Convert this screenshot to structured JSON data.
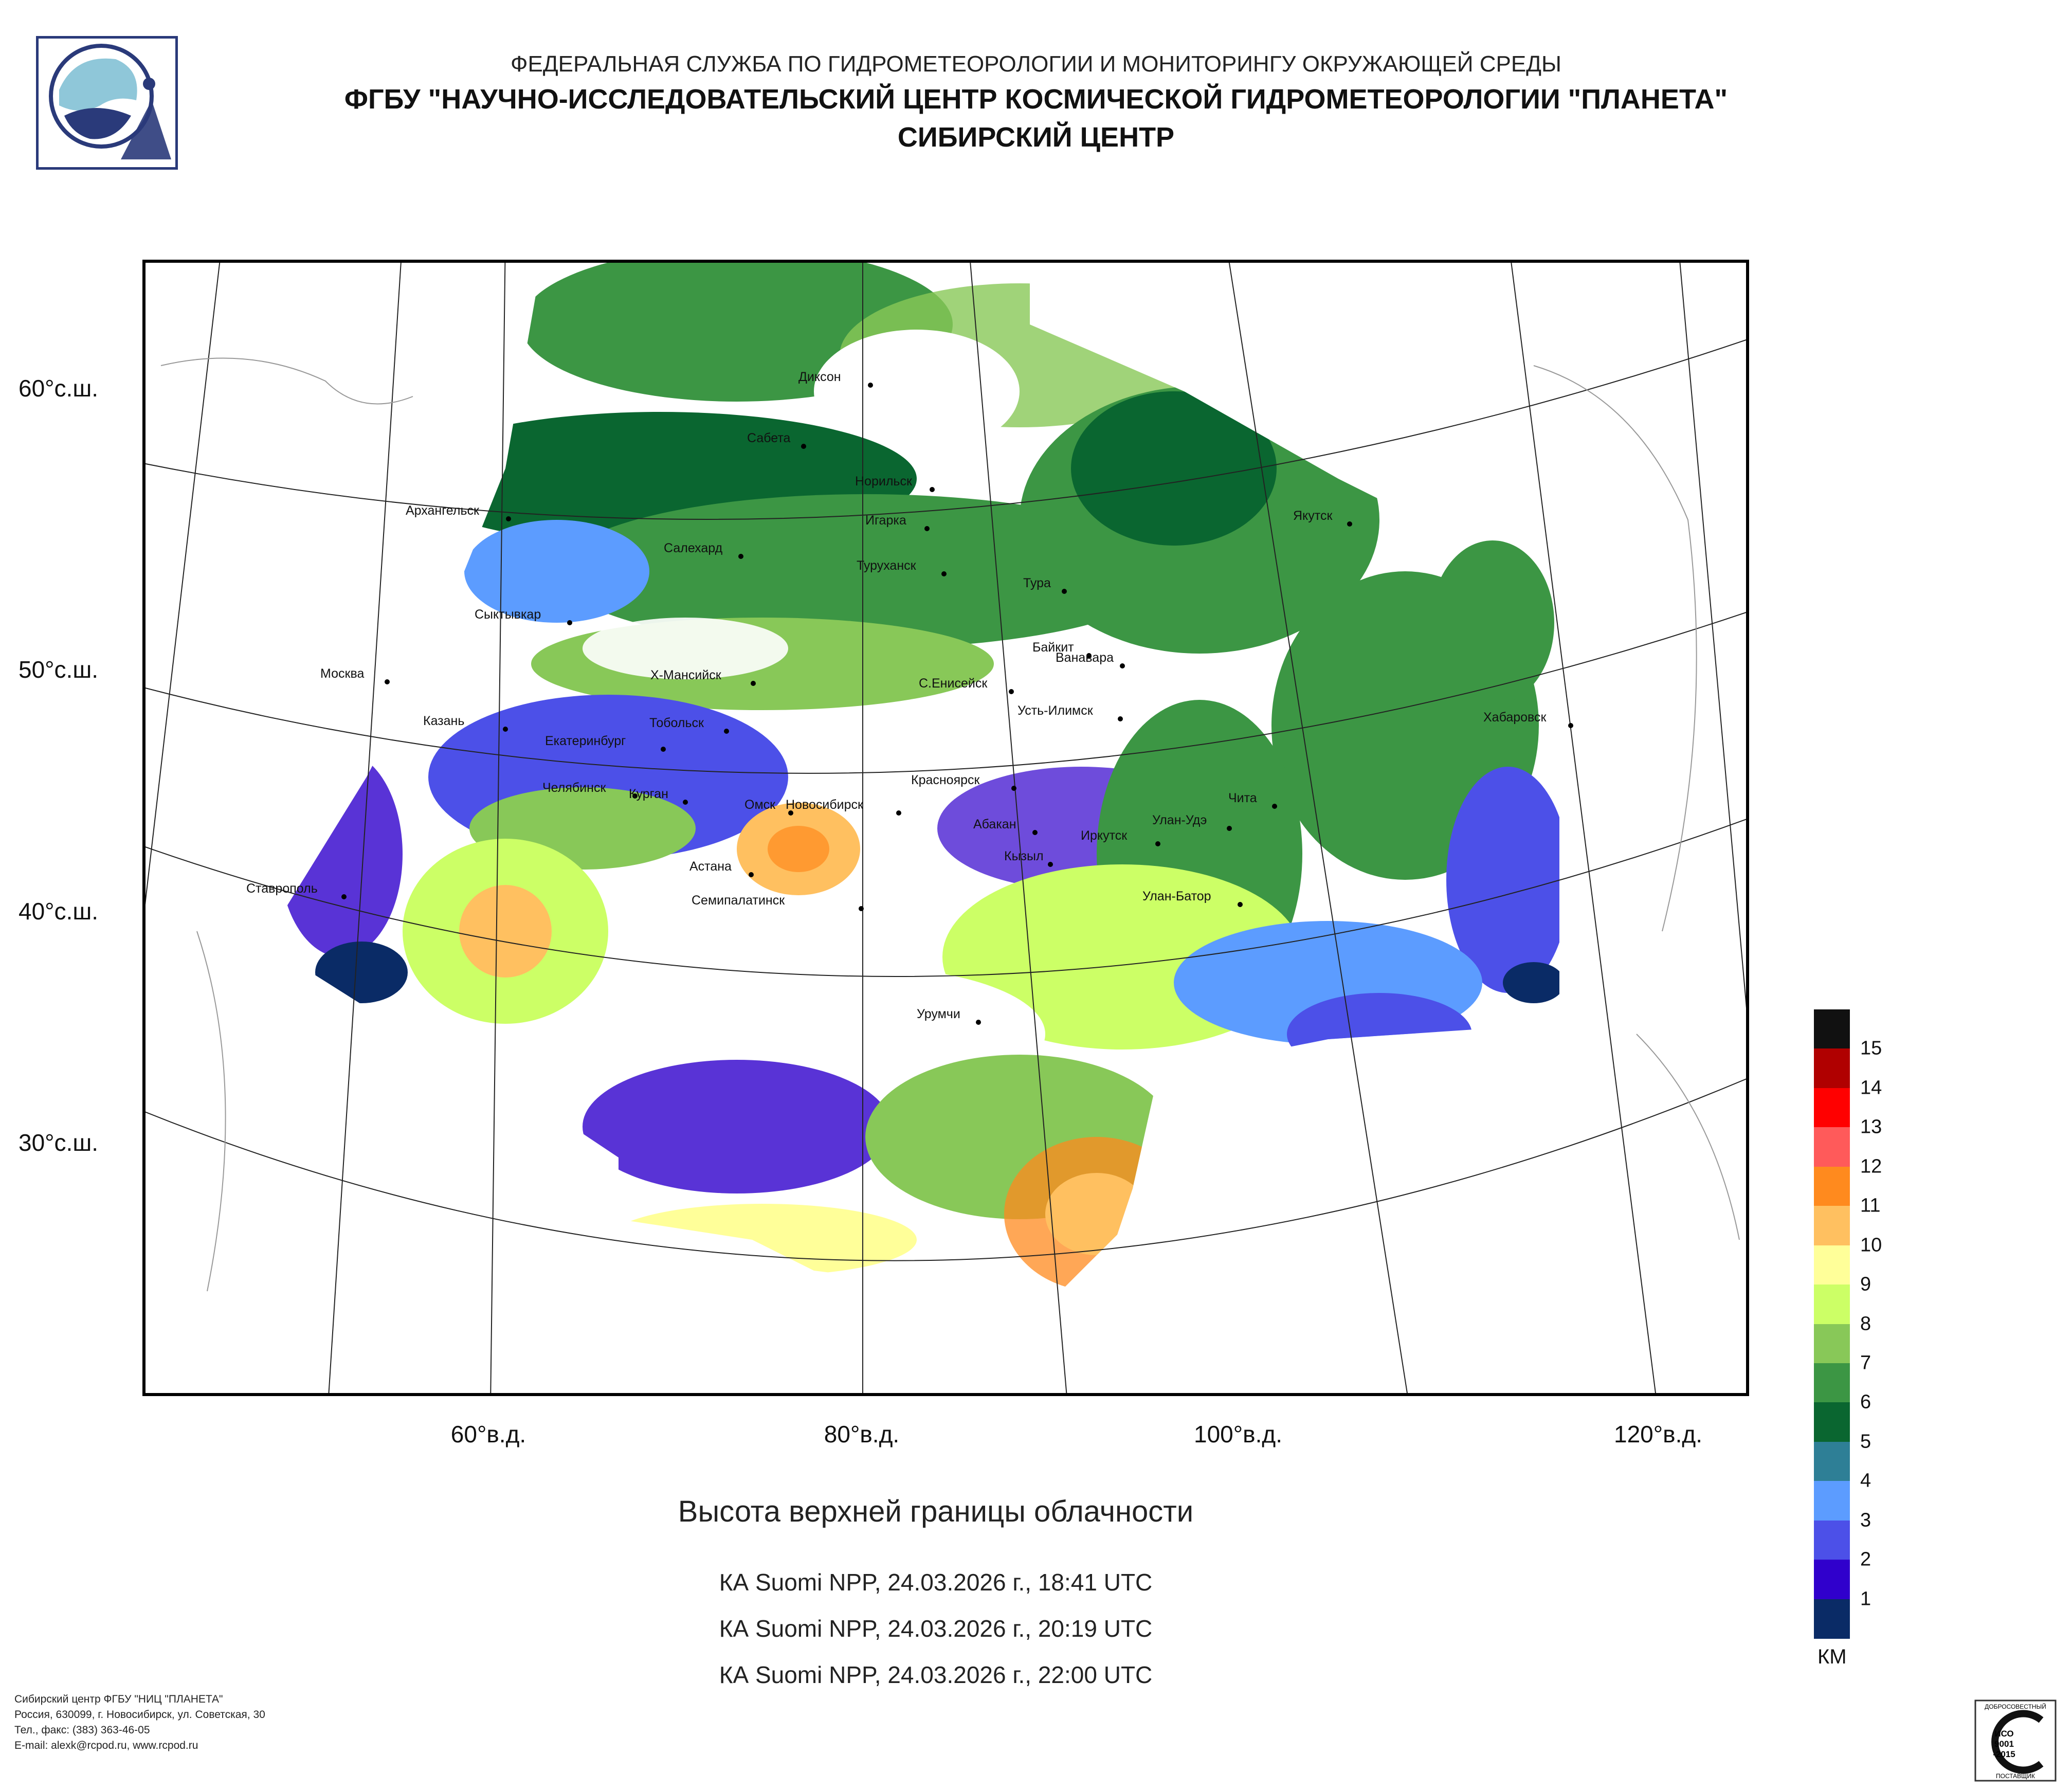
{
  "header": {
    "line1": "ФЕДЕРАЛЬНАЯ СЛУЖБА ПО ГИДРОМЕТЕОРОЛОГИИ И МОНИТОРИНГУ ОКРУЖАЮЩЕЙ СРЕДЫ",
    "line2": "ФГБУ \"НАУЧНО-ИССЛЕДОВАТЕЛЬСКИЙ ЦЕНТР КОСМИЧЕСКОЙ ГИДРОМЕТЕОРОЛОГИИ \"ПЛАНЕТА\"",
    "line3": "СИБИРСКИЙ ЦЕНТР"
  },
  "map": {
    "lat_labels": [
      "60°с.ш.",
      "50°с.ш.",
      "40°с.ш.",
      "30°с.ш."
    ],
    "lon_labels": [
      "60°в.д.",
      "80°в.д.",
      "100°в.д.",
      "120°в.д."
    ],
    "cities": [
      "Диксон",
      "Сабета",
      "Норильск",
      "Игарка",
      "Архангельск",
      "Салехард",
      "Туруханск",
      "Тура",
      "Якутск",
      "Сыктывкар",
      "Байкит",
      "Ванавара",
      "Москва",
      "Х-Мансийск",
      "С.Енисейск",
      "Усть-Илимск",
      "Хабаровск",
      "Казань",
      "Тобольск",
      "Екатеринбург",
      "Красноярск",
      "Челябинск",
      "Курган",
      "Чита",
      "Омск",
      "Новосибирск",
      "Улан-Удэ",
      "Абакан",
      "Иркутск",
      "Астана",
      "Кызыл",
      "Ставрополь",
      "Семипалатинск",
      "Улан-Батор",
      "Урумчи"
    ]
  },
  "title": "Высота верхней границы облачности",
  "passes": [
    "КА Suomi NPP, 24.03.2026 г., 18:41 UTC",
    "КА Suomi NPP, 24.03.2026 г., 20:19 UTC",
    "КА Suomi NPP, 24.03.2026 г., 22:00 UTC"
  ],
  "legend": {
    "unit": "КМ",
    "labels": [
      "15",
      "14",
      "13",
      "12",
      "11",
      "10",
      "9",
      "8",
      "7",
      "6",
      "5",
      "4",
      "3",
      "2",
      "1"
    ],
    "colors": [
      "#111111",
      "#b00000",
      "#ff0000",
      "#ff5a5a",
      "#ff8a1e",
      "#ffc060",
      "#ffff99",
      "#ccff66",
      "#88c858",
      "#3c9644",
      "#0a6630",
      "#2e7f96",
      "#5c9cff",
      "#4c50e8",
      "#3000cc",
      "#0a2b66"
    ]
  },
  "footer": {
    "line1": "Сибирский центр ФГБУ \"НИЦ \"ПЛАНЕТА\"",
    "line2": "Россия, 630099, г. Новосибирск, ул. Советская, 30",
    "line3": "Тел., факс: (383) 363-46-05",
    "line4": "E-mail: alexk@rcpod.ru, www.rcpod.ru"
  },
  "cert": {
    "top": "ДОБРОСОВЕСТНЫЙ",
    "mid1": "ИСО",
    "mid2": "9001",
    "mid3": "-2015",
    "bottom": "ПОСТАВЩИК"
  }
}
